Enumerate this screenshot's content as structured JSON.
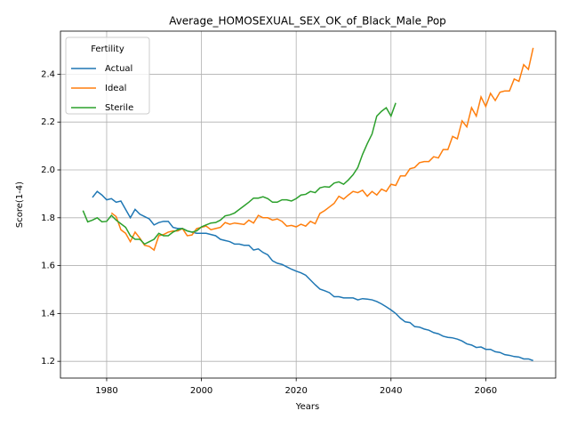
{
  "chart_data": {
    "type": "line",
    "title": "Average_HOMOSEXUAL_SEX_OK_of_Black_Male_Pop",
    "x_label": "Years",
    "y_label": "Score(1-4)",
    "legend_title": "Fertility",
    "legend_position": "upper left",
    "grid": true,
    "xlim": [
      1970.25,
      2074.75
    ],
    "xticks": [
      1980,
      2000,
      2020,
      2040,
      2060
    ],
    "ylim": [
      1.13,
      2.58
    ],
    "yticks": [
      {
        "value": 1.2,
        "label": "1.2"
      },
      {
        "value": 1.4,
        "label": "1.4"
      },
      {
        "value": 1.6,
        "label": "1.6"
      },
      {
        "value": 1.8,
        "label": "1.8"
      },
      {
        "value": 2.0,
        "label": "2.0"
      },
      {
        "value": 2.2,
        "label": "2.2"
      },
      {
        "value": 2.4,
        "label": "2.4"
      }
    ],
    "x": [
      1975,
      1976,
      1977,
      1978,
      1979,
      1980,
      1981,
      1982,
      1983,
      1984,
      1985,
      1986,
      1987,
      1988,
      1989,
      1990,
      1991,
      1992,
      1993,
      1994,
      1995,
      1996,
      1997,
      1998,
      1999,
      2000,
      2001,
      2002,
      2003,
      2004,
      2005,
      2006,
      2007,
      2008,
      2009,
      2010,
      2011,
      2012,
      2013,
      2014,
      2015,
      2016,
      2017,
      2018,
      2019,
      2020,
      2021,
      2022,
      2023,
      2024,
      2025,
      2026,
      2027,
      2028,
      2029,
      2030,
      2031,
      2032,
      2033,
      2034,
      2035,
      2036,
      2037,
      2038,
      2039,
      2040,
      2041,
      2042,
      2043,
      2044,
      2045,
      2046,
      2047,
      2048,
      2049,
      2050,
      2051,
      2052,
      2053,
      2054,
      2055,
      2056,
      2057,
      2058,
      2059,
      2060,
      2061,
      2062,
      2063,
      2064,
      2065,
      2066,
      2067,
      2068,
      2069,
      2070
    ],
    "series": [
      {
        "name": "Actual",
        "color": "#1f77b4",
        "values": [
          null,
          null,
          1.885,
          1.91,
          1.895,
          1.875,
          1.88,
          1.865,
          1.87,
          1.835,
          1.8,
          1.835,
          1.815,
          1.805,
          1.795,
          1.77,
          1.78,
          1.785,
          1.785,
          1.76,
          1.755,
          1.755,
          1.745,
          1.74,
          1.735,
          1.735,
          1.735,
          1.73,
          1.725,
          1.71,
          1.705,
          1.7,
          1.69,
          1.69,
          1.685,
          1.685,
          1.665,
          1.67,
          1.655,
          1.645,
          1.62,
          1.61,
          1.605,
          1.595,
          1.585,
          1.577,
          1.57,
          1.56,
          1.54,
          1.52,
          1.502,
          1.495,
          1.487,
          1.47,
          1.47,
          1.465,
          1.465,
          1.465,
          1.457,
          1.462,
          1.46,
          1.457,
          1.45,
          1.44,
          1.428,
          1.415,
          1.4,
          1.38,
          1.365,
          1.362,
          1.345,
          1.343,
          1.335,
          1.33,
          1.32,
          1.315,
          1.305,
          1.3,
          1.298,
          1.293,
          1.285,
          1.273,
          1.268,
          1.258,
          1.26,
          1.25,
          1.25,
          1.24,
          1.237,
          1.228,
          1.225,
          1.22,
          1.218,
          1.21,
          1.21,
          1.203
        ]
      },
      {
        "name": "Ideal",
        "color": "#ff7f0e",
        "values": [
          null,
          null,
          null,
          null,
          null,
          null,
          1.82,
          1.805,
          1.75,
          1.735,
          1.7,
          1.74,
          1.715,
          1.685,
          1.68,
          1.665,
          1.725,
          1.73,
          1.74,
          1.745,
          1.745,
          1.755,
          1.725,
          1.728,
          1.755,
          1.76,
          1.765,
          1.75,
          1.755,
          1.76,
          1.78,
          1.773,
          1.778,
          1.775,
          1.772,
          1.79,
          1.778,
          1.81,
          1.8,
          1.8,
          1.79,
          1.795,
          1.785,
          1.765,
          1.768,
          1.762,
          1.773,
          1.765,
          1.785,
          1.775,
          1.818,
          1.83,
          1.845,
          1.86,
          1.89,
          1.878,
          1.895,
          1.91,
          1.905,
          1.915,
          1.89,
          1.91,
          1.895,
          1.92,
          1.91,
          1.94,
          1.935,
          1.975,
          1.975,
          2.005,
          2.01,
          2.03,
          2.035,
          2.035,
          2.055,
          2.05,
          2.085,
          2.085,
          2.14,
          2.13,
          2.205,
          2.18,
          2.26,
          2.225,
          2.305,
          2.265,
          2.32,
          2.29,
          2.325,
          2.33,
          2.33,
          2.38,
          2.37,
          2.44,
          2.42,
          2.51
        ]
      },
      {
        "name": "Sterile",
        "color": "#2ca02c",
        "values": [
          1.83,
          1.783,
          1.79,
          1.8,
          1.783,
          1.785,
          1.81,
          1.79,
          1.775,
          1.76,
          1.725,
          1.71,
          1.71,
          1.69,
          1.7,
          1.71,
          1.735,
          1.725,
          1.725,
          1.74,
          1.75,
          1.755,
          1.745,
          1.74,
          1.745,
          1.762,
          1.77,
          1.778,
          1.78,
          1.79,
          1.808,
          1.812,
          1.82,
          1.835,
          1.85,
          1.865,
          1.882,
          1.882,
          1.888,
          1.88,
          1.865,
          1.865,
          1.875,
          1.875,
          1.87,
          1.88,
          1.895,
          1.898,
          1.91,
          1.905,
          1.925,
          1.93,
          1.928,
          1.945,
          1.95,
          1.94,
          1.958,
          1.98,
          2.01,
          2.065,
          2.11,
          2.15,
          2.225,
          2.245,
          2.26,
          2.225,
          2.28,
          null,
          null,
          null,
          null,
          null,
          null,
          null,
          null,
          null,
          null,
          null,
          null,
          null,
          null,
          null,
          null,
          null,
          null,
          null,
          null,
          null,
          null,
          null,
          null,
          null,
          null,
          null,
          null,
          null
        ]
      }
    ]
  }
}
